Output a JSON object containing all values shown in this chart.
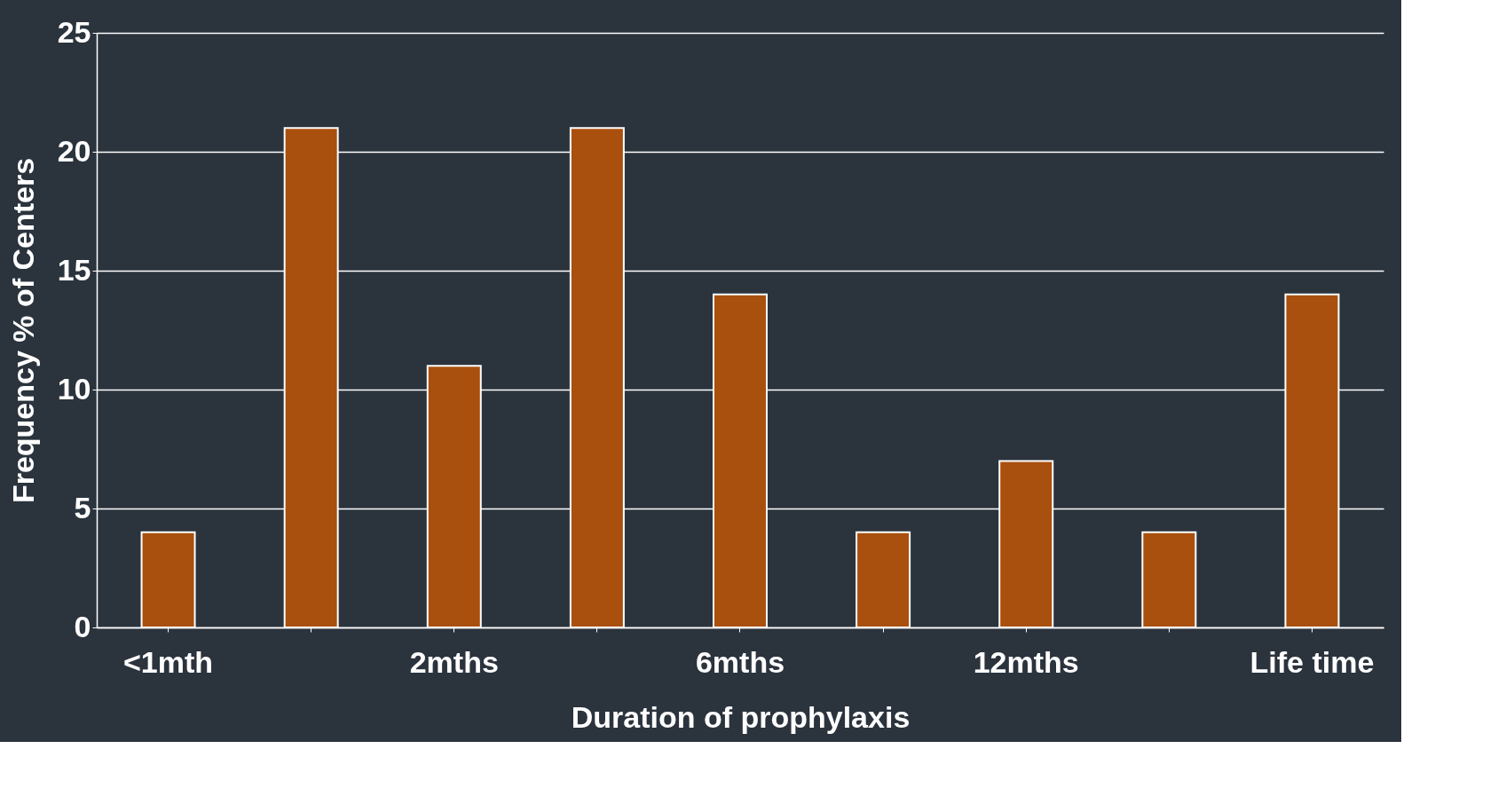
{
  "chart_data": {
    "type": "bar",
    "xlabel": "Duration of prophylaxis",
    "ylabel": "Frequency % of Centers",
    "categories": [
      "<1mth",
      null,
      "2mths",
      null,
      "6mths",
      null,
      "12mths",
      null,
      "Life time"
    ],
    "values": [
      4,
      21,
      11,
      21,
      14,
      4,
      7,
      4,
      14
    ],
    "color": "#a9500f",
    "ylim": [
      0,
      25
    ],
    "yticks": [
      0,
      5,
      10,
      15,
      20,
      25
    ],
    "grid": "y"
  }
}
